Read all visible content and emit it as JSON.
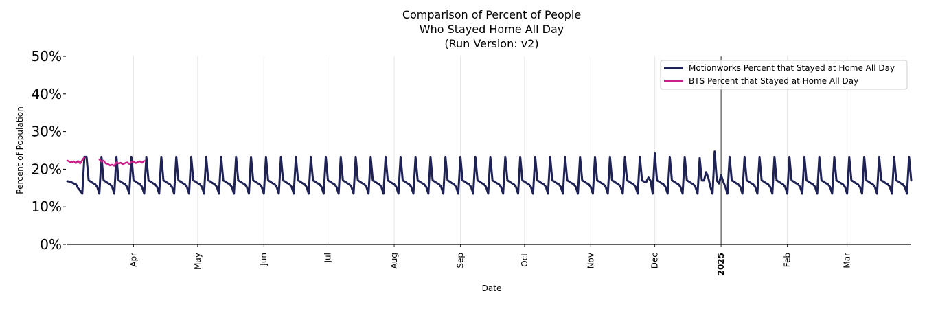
{
  "chart_data": {
    "type": "line",
    "title_lines": [
      "Comparison of Percent of People",
      "Who Stayed Home All Day",
      "(Run Version: v2)"
    ],
    "xlabel": "Date",
    "ylabel": "Percent of Population",
    "ylim": [
      0,
      50
    ],
    "y_ticks": [
      {
        "value": 0,
        "label": "0%"
      },
      {
        "value": 10,
        "label": "10%"
      },
      {
        "value": 20,
        "label": "20%"
      },
      {
        "value": 30,
        "label": "30%"
      },
      {
        "value": 40,
        "label": "40%"
      },
      {
        "value": 50,
        "label": "50%"
      }
    ],
    "x_range": [
      "2024-03-01",
      "2025-03-31"
    ],
    "x_ticks": [
      {
        "date": "2024-04-01",
        "label": "Apr"
      },
      {
        "date": "2024-05-01",
        "label": "May"
      },
      {
        "date": "2024-06-01",
        "label": "Jun"
      },
      {
        "date": "2024-07-01",
        "label": "Jul"
      },
      {
        "date": "2024-08-01",
        "label": "Aug"
      },
      {
        "date": "2024-09-01",
        "label": "Sep"
      },
      {
        "date": "2024-10-01",
        "label": "Oct"
      },
      {
        "date": "2024-11-01",
        "label": "Nov"
      },
      {
        "date": "2024-12-01",
        "label": "Dec"
      },
      {
        "date": "2025-01-01",
        "label": "2025",
        "bold": true
      },
      {
        "date": "2025-02-01",
        "label": "Feb"
      },
      {
        "date": "2025-03-01",
        "label": "Mar"
      }
    ],
    "reference_line_date": "2025-01-01",
    "grid": "vertical",
    "legend_position": "top-right",
    "series": [
      {
        "name": "Motionworks Percent that Stayed at Home All Day",
        "color": "#1f2254",
        "weekly_pattern": [
          23.3,
          17.0,
          16.7,
          16.3,
          16.0,
          15.3,
          13.5
        ],
        "pattern_start": "2024-03-10",
        "start_date": "2024-03-01",
        "end_date": "2025-03-31",
        "points": [
          {
            "date": "2024-03-01",
            "value": 16.8
          },
          {
            "date": "2024-03-02",
            "value": 16.7
          },
          {
            "date": "2024-03-03",
            "value": 16.5
          },
          {
            "date": "2024-03-04",
            "value": 16.2
          },
          {
            "date": "2024-03-05",
            "value": 16.0
          },
          {
            "date": "2024-03-06",
            "value": 15.0
          },
          {
            "date": "2024-03-07",
            "value": 14.3
          },
          {
            "date": "2024-03-08",
            "value": 13.5
          },
          {
            "date": "2024-03-09",
            "value": 23.3
          }
        ],
        "overrides": [
          {
            "date": "2024-11-27",
            "value": 16.6
          },
          {
            "date": "2024-11-28",
            "value": 17.8
          },
          {
            "date": "2024-11-29",
            "value": 16.9
          },
          {
            "date": "2024-12-01",
            "value": 24.2
          },
          {
            "date": "2024-12-22",
            "value": 23.0
          },
          {
            "date": "2024-12-24",
            "value": 17.0
          },
          {
            "date": "2024-12-25",
            "value": 19.2
          },
          {
            "date": "2024-12-26",
            "value": 17.8
          },
          {
            "date": "2024-12-29",
            "value": 24.7
          },
          {
            "date": "2024-12-31",
            "value": 16.2
          },
          {
            "date": "2025-01-01",
            "value": 18.4
          },
          {
            "date": "2025-01-02",
            "value": 16.7
          }
        ]
      },
      {
        "name": "BTS Percent that Stayed at Home All Day",
        "color": "#cc1f8a",
        "points": [
          {
            "date": "2024-03-01",
            "value": 22.3
          },
          {
            "date": "2024-03-02",
            "value": 22.0
          },
          {
            "date": "2024-03-03",
            "value": 21.8
          },
          {
            "date": "2024-03-04",
            "value": 22.1
          },
          {
            "date": "2024-03-05",
            "value": 21.6
          },
          {
            "date": "2024-03-06",
            "value": 22.2
          },
          {
            "date": "2024-03-07",
            "value": 21.5
          },
          {
            "date": "2024-03-08",
            "value": 22.4
          },
          {
            "date": "2024-03-09",
            "value": 23.2
          },
          {
            "date": "2024-03-16",
            "value": 22.6
          },
          {
            "date": "2024-03-17",
            "value": 22.0
          },
          {
            "date": "2024-03-18",
            "value": 22.3
          },
          {
            "date": "2024-03-19",
            "value": 21.5
          },
          {
            "date": "2024-03-20",
            "value": 21.4
          },
          {
            "date": "2024-03-21",
            "value": 21.0
          },
          {
            "date": "2024-03-22",
            "value": 21.2
          },
          {
            "date": "2024-03-23",
            "value": 20.9
          },
          {
            "date": "2024-03-24",
            "value": 21.8
          },
          {
            "date": "2024-03-25",
            "value": 21.5
          },
          {
            "date": "2024-03-26",
            "value": 21.7
          },
          {
            "date": "2024-03-27",
            "value": 21.3
          },
          {
            "date": "2024-03-28",
            "value": 21.6
          },
          {
            "date": "2024-03-29",
            "value": 21.8
          },
          {
            "date": "2024-03-30",
            "value": 21.4
          },
          {
            "date": "2024-03-31",
            "value": 21.9
          },
          {
            "date": "2024-04-01",
            "value": 22.0
          },
          {
            "date": "2024-04-02",
            "value": 21.6
          },
          {
            "date": "2024-04-03",
            "value": 21.9
          },
          {
            "date": "2024-04-04",
            "value": 22.1
          },
          {
            "date": "2024-04-05",
            "value": 21.7
          },
          {
            "date": "2024-04-06",
            "value": 22.2
          }
        ]
      }
    ]
  }
}
